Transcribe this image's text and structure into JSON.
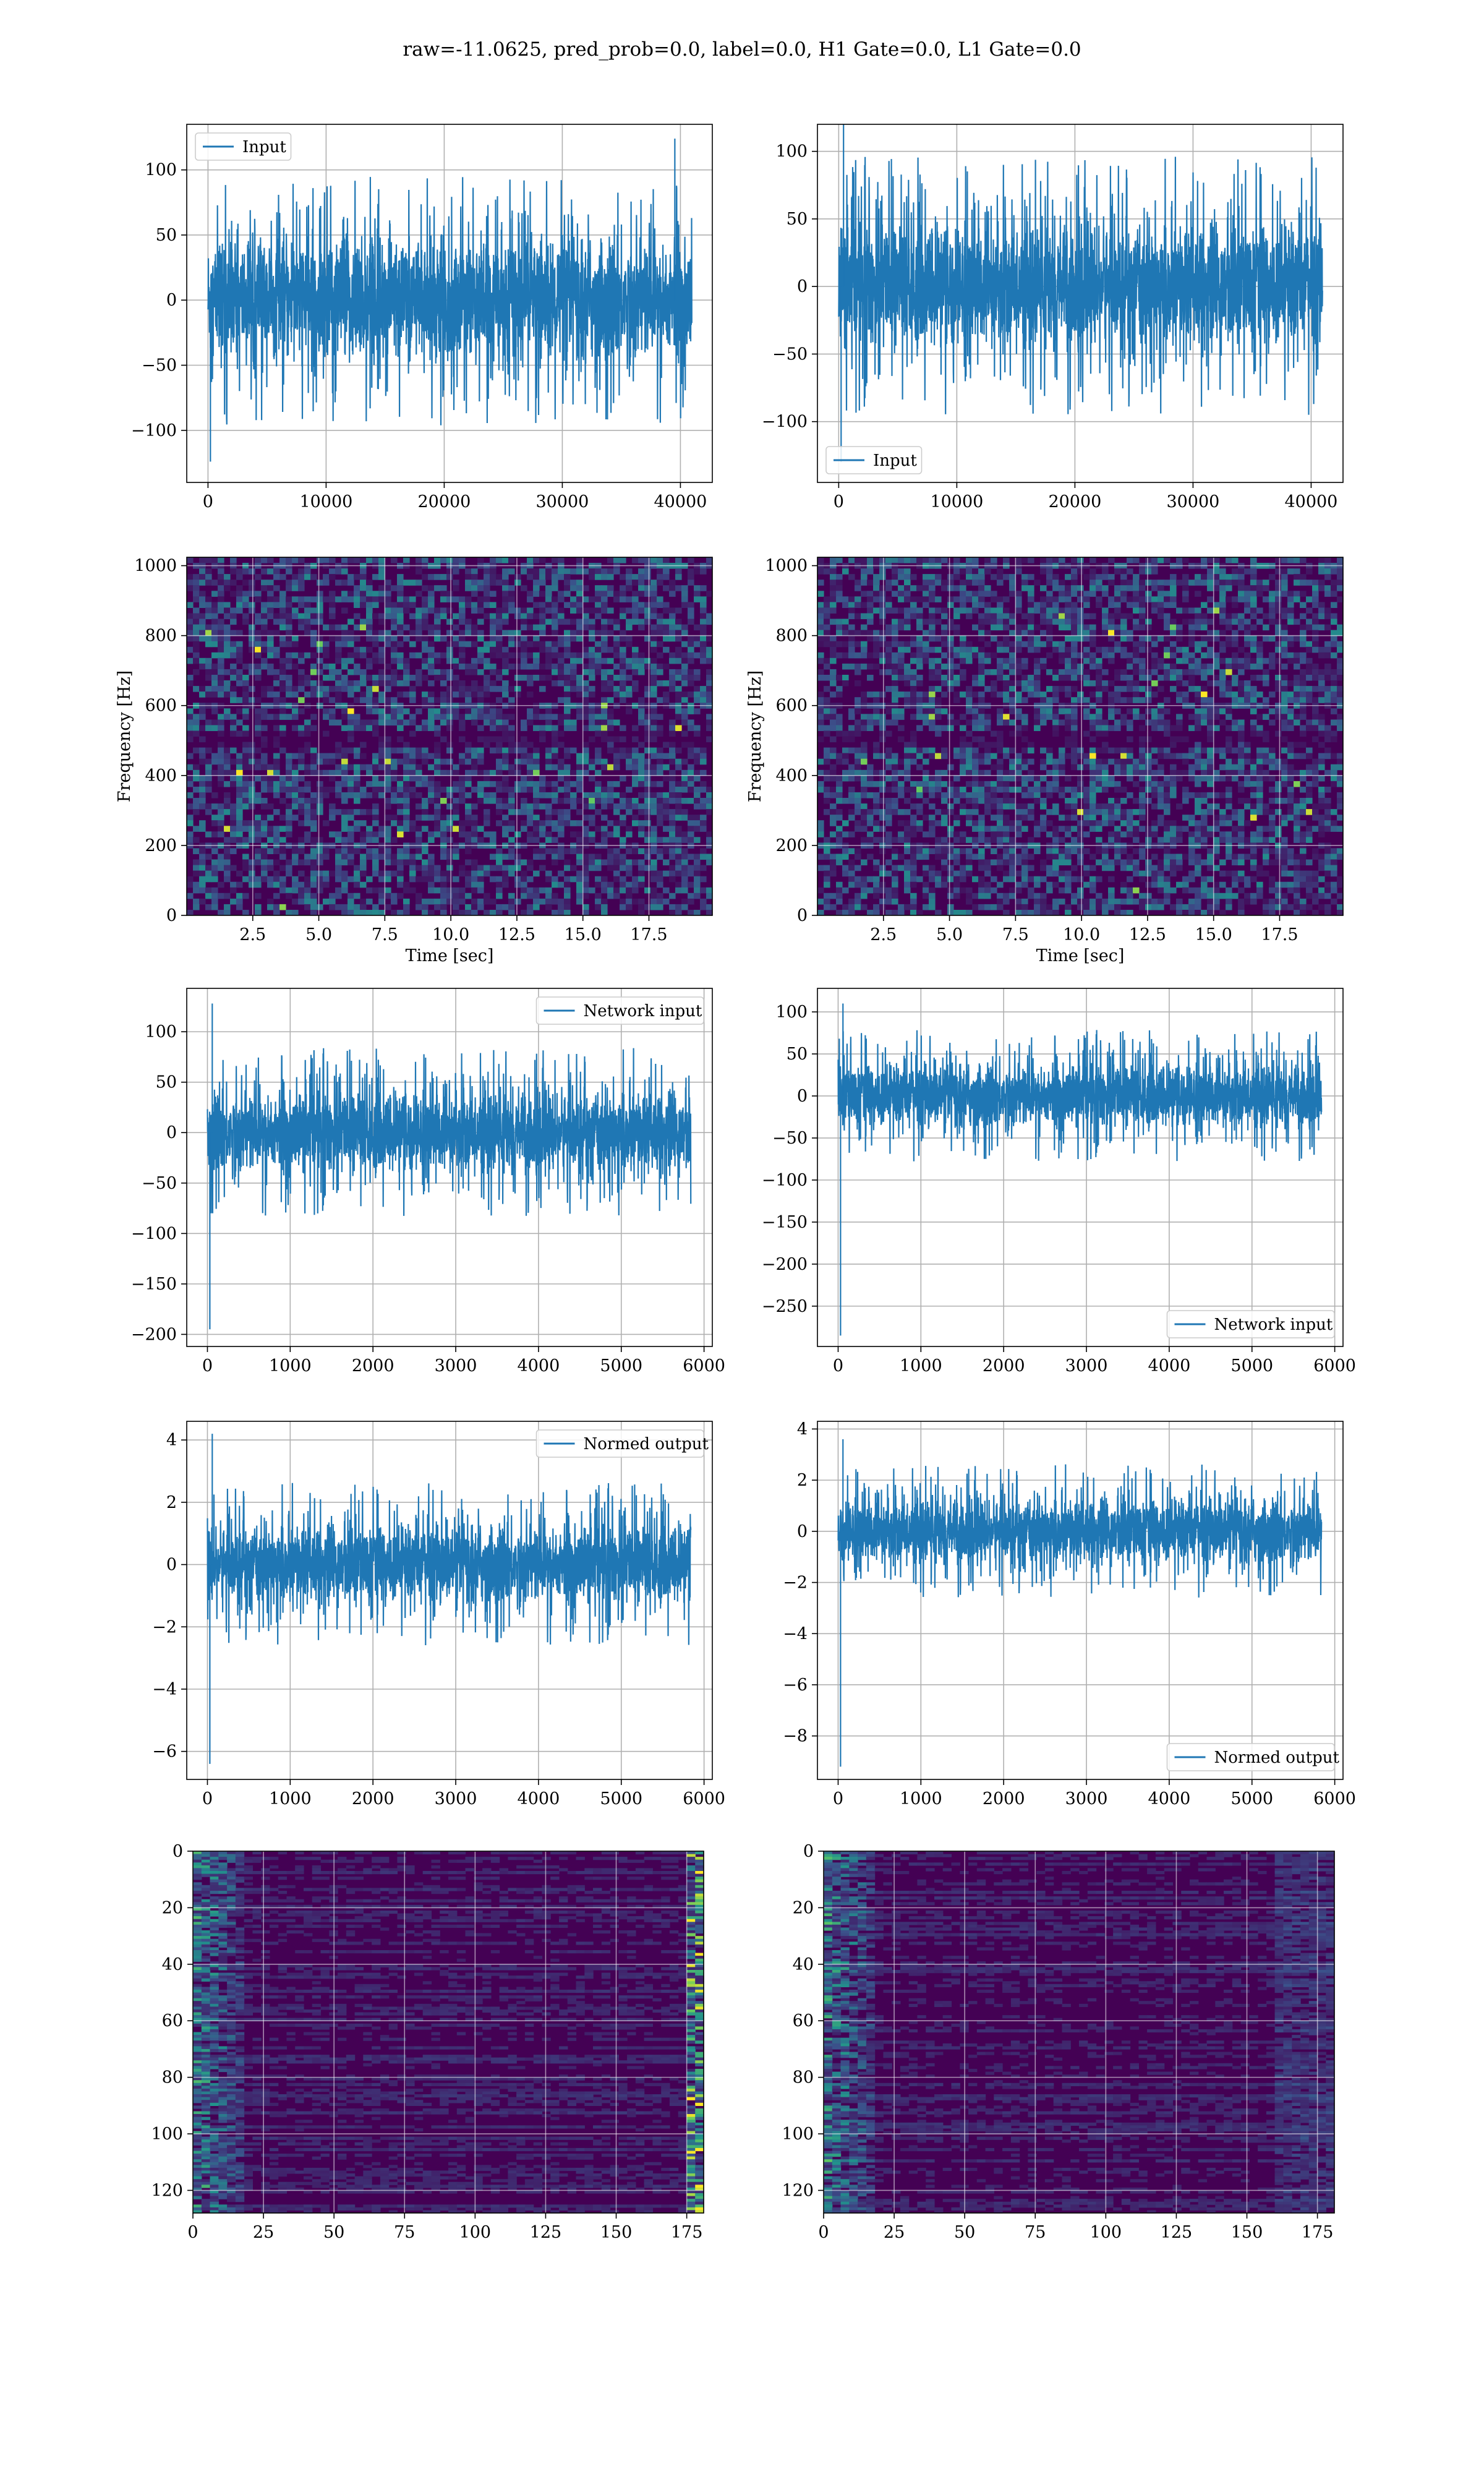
{
  "figure": {
    "title": "raw=-11.0625, pred_prob=0.0, label=0.0, H1 Gate=0.0, L1 Gate=0.0"
  },
  "colors": {
    "line": "#1f77b4",
    "grid": "#b0b0b0",
    "viridis_dark": "#440154",
    "viridis_low": "#3b0f70",
    "viridis_mid": "#21918c",
    "viridis_high": "#5ec962",
    "viridis_peak": "#fde725"
  },
  "chart_data": [
    {
      "id": "input-h1",
      "type": "line",
      "legend": "Input",
      "legend_loc": "upper-left",
      "xlim": [
        -1800,
        42700
      ],
      "ylim": [
        -140,
        135
      ],
      "xticks": [
        0,
        10000,
        20000,
        30000,
        40000
      ],
      "yticks": [
        -100,
        -50,
        0,
        50,
        100
      ],
      "xticklabels": [
        "0",
        "10000",
        "20000",
        "30000",
        "40000"
      ],
      "yticklabels": [
        "−100",
        "−50",
        "0",
        "50",
        "100"
      ],
      "signal": {
        "x_start": 0,
        "x_end": 40960,
        "band": 55,
        "spike_max": 124,
        "spike_min": -124
      }
    },
    {
      "id": "input-l1",
      "type": "line",
      "legend": "Input",
      "legend_loc": "lower-left",
      "xlim": [
        -1800,
        42700
      ],
      "ylim": [
        -145,
        120
      ],
      "xticks": [
        0,
        10000,
        20000,
        30000,
        40000
      ],
      "yticks": [
        -100,
        -50,
        0,
        50,
        100
      ],
      "xticklabels": [
        "0",
        "10000",
        "20000",
        "30000",
        "40000"
      ],
      "yticklabels": [
        "−100",
        "−50",
        "0",
        "50",
        "100"
      ],
      "signal": {
        "x_start": 0,
        "x_end": 40960,
        "band": 55,
        "spike_max": 120,
        "spike_min": -130
      }
    },
    {
      "id": "spectrogram-h1",
      "type": "heatmap",
      "xlabel": "Time [sec]",
      "ylabel": "Frequency [Hz]",
      "xlim": [
        0,
        19.9
      ],
      "ylim": [
        0,
        1024
      ],
      "xticks": [
        2.5,
        5,
        7.5,
        10,
        12.5,
        15,
        17.5
      ],
      "yticks": [
        0,
        200,
        400,
        600,
        800,
        1000
      ],
      "xticklabels": [
        "2.5",
        "5.0",
        "7.5",
        "10.0",
        "12.5",
        "15.0",
        "17.5"
      ],
      "yticklabels": [
        "0",
        "200",
        "400",
        "600",
        "800",
        "1000"
      ],
      "dark_band_hz": [
        480,
        520
      ]
    },
    {
      "id": "spectrogram-l1",
      "type": "heatmap",
      "xlabel": "Time [sec]",
      "ylabel": "Frequency [Hz]",
      "xlim": [
        0,
        19.9
      ],
      "ylim": [
        0,
        1024
      ],
      "xticks": [
        2.5,
        5,
        7.5,
        10,
        12.5,
        15,
        17.5
      ],
      "yticks": [
        0,
        200,
        400,
        600,
        800,
        1000
      ],
      "xticklabels": [
        "2.5",
        "5.0",
        "7.5",
        "10.0",
        "12.5",
        "15.0",
        "17.5"
      ],
      "yticklabels": [
        "0",
        "200",
        "400",
        "600",
        "800",
        "1000"
      ],
      "dark_band_hz": [
        480,
        520
      ]
    },
    {
      "id": "network-input-h1",
      "type": "line",
      "legend": "Network input",
      "legend_loc": "upper-right",
      "xlim": [
        -250,
        6100
      ],
      "ylim": [
        -212,
        143
      ],
      "xticks": [
        0,
        1000,
        2000,
        3000,
        4000,
        5000,
        6000
      ],
      "yticks": [
        -200,
        -150,
        -100,
        -50,
        0,
        50,
        100
      ],
      "xticklabels": [
        "0",
        "1000",
        "2000",
        "3000",
        "4000",
        "5000",
        "6000"
      ],
      "yticklabels": [
        "−200",
        "−150",
        "−100",
        "−50",
        "0",
        "50",
        "100"
      ],
      "signal": {
        "x_start": 0,
        "x_end": 5840,
        "band": 48,
        "spike_max": 128,
        "spike_min": -195
      }
    },
    {
      "id": "network-input-l1",
      "type": "line",
      "legend": "Network input",
      "legend_loc": "lower-right",
      "xlim": [
        -250,
        6100
      ],
      "ylim": [
        -298,
        128
      ],
      "xticks": [
        0,
        1000,
        2000,
        3000,
        4000,
        5000,
        6000
      ],
      "yticks": [
        -250,
        -200,
        -150,
        -100,
        -50,
        0,
        50,
        100
      ],
      "xticklabels": [
        "0",
        "1000",
        "2000",
        "3000",
        "4000",
        "5000",
        "6000"
      ],
      "yticklabels": [
        "−250",
        "−200",
        "−150",
        "−100",
        "−50",
        "0",
        "50",
        "100"
      ],
      "signal": {
        "x_start": 0,
        "x_end": 5840,
        "band": 45,
        "spike_max": 110,
        "spike_min": -285
      }
    },
    {
      "id": "normed-output-h1",
      "type": "line",
      "legend": "Normed output",
      "legend_loc": "upper-right",
      "xlim": [
        -250,
        6100
      ],
      "ylim": [
        -6.9,
        4.6
      ],
      "xticks": [
        0,
        1000,
        2000,
        3000,
        4000,
        5000,
        6000
      ],
      "yticks": [
        -6,
        -4,
        -2,
        0,
        2,
        4
      ],
      "xticklabels": [
        "0",
        "1000",
        "2000",
        "3000",
        "4000",
        "5000",
        "6000"
      ],
      "yticklabels": [
        "−6",
        "−4",
        "−2",
        "0",
        "2",
        "4"
      ],
      "signal": {
        "x_start": 0,
        "x_end": 5840,
        "band": 1.5,
        "spike_max": 4.2,
        "spike_min": -6.4
      }
    },
    {
      "id": "normed-output-l1",
      "type": "line",
      "legend": "Normed output",
      "legend_loc": "lower-right",
      "xlim": [
        -250,
        6100
      ],
      "ylim": [
        -9.7,
        4.3
      ],
      "xticks": [
        0,
        1000,
        2000,
        3000,
        4000,
        5000,
        6000
      ],
      "yticks": [
        -8,
        -6,
        -4,
        -2,
        0,
        2,
        4
      ],
      "xticklabels": [
        "0",
        "1000",
        "2000",
        "3000",
        "4000",
        "5000",
        "6000"
      ],
      "yticklabels": [
        "−8",
        "−6",
        "−4",
        "−2",
        "0",
        "2",
        "4"
      ],
      "signal": {
        "x_start": 0,
        "x_end": 5840,
        "band": 1.5,
        "spike_max": 3.6,
        "spike_min": -9.2
      }
    },
    {
      "id": "features-h1",
      "type": "heatmap",
      "xlim": [
        0,
        181
      ],
      "ylim": [
        128,
        0
      ],
      "xticks": [
        0,
        25,
        50,
        75,
        100,
        125,
        150,
        175
      ],
      "yticks": [
        0,
        20,
        40,
        60,
        80,
        100,
        120
      ],
      "xticklabels": [
        "0",
        "25",
        "50",
        "75",
        "100",
        "125",
        "150",
        "175"
      ],
      "yticklabels": [
        "0",
        "20",
        "40",
        "60",
        "80",
        "100",
        "120"
      ]
    },
    {
      "id": "features-l1",
      "type": "heatmap",
      "xlim": [
        0,
        181
      ],
      "ylim": [
        128,
        0
      ],
      "xticks": [
        0,
        25,
        50,
        75,
        100,
        125,
        150,
        175
      ],
      "yticks": [
        0,
        20,
        40,
        60,
        80,
        100,
        120
      ],
      "xticklabels": [
        "0",
        "25",
        "50",
        "75",
        "100",
        "125",
        "150",
        "175"
      ],
      "yticklabels": [
        "0",
        "20",
        "40",
        "60",
        "80",
        "100",
        "120"
      ]
    }
  ]
}
